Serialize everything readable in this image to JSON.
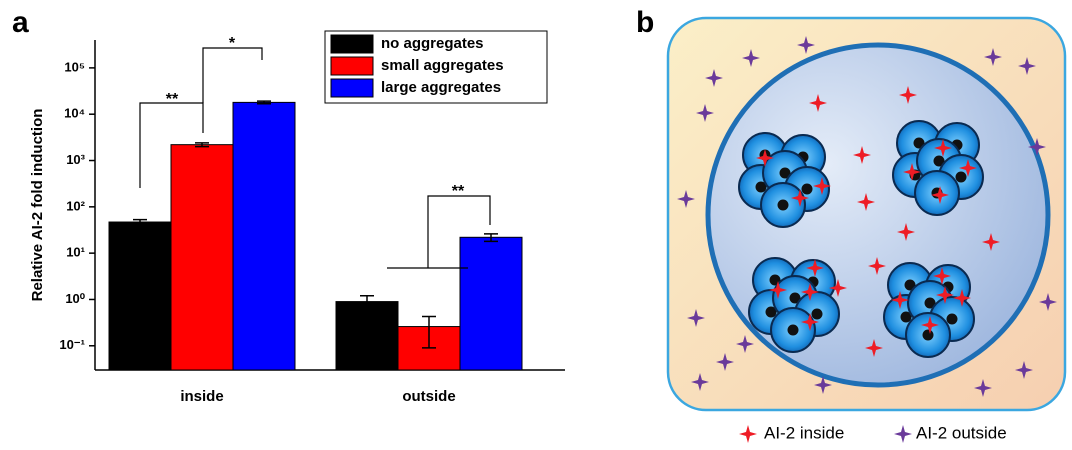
{
  "panel_labels": [
    "a",
    "b"
  ],
  "chart_data": {
    "type": "bar",
    "log_y": true,
    "ylabel": "Relative AI-2 fold induction",
    "categories": [
      "inside",
      "outside"
    ],
    "series": [
      {
        "name": "no aggregates",
        "color": "#000000",
        "values": [
          47,
          0.9
        ],
        "errors": [
          6,
          0.3
        ]
      },
      {
        "name": "small aggregates",
        "color": "#ff0000",
        "values": [
          2200,
          0.26
        ],
        "errors": [
          200,
          0.17
        ]
      },
      {
        "name": "large aggregates",
        "color": "#0000ff",
        "values": [
          18000,
          22
        ],
        "errors": [
          1200,
          4
        ]
      }
    ],
    "ylim": [
      0.03,
      400000
    ],
    "yticks": [
      {
        "value": 0.1,
        "label": "10⁻¹"
      },
      {
        "value": 1,
        "label": "10⁰"
      },
      {
        "value": 10,
        "label": "10¹"
      },
      {
        "value": 100,
        "label": "10²"
      },
      {
        "value": 1000,
        "label": "10³"
      },
      {
        "value": 10000,
        "label": "10⁴"
      },
      {
        "value": 100000,
        "label": "10⁵"
      }
    ],
    "legend": "upper right",
    "annotations": [
      "**",
      "*",
      "**"
    ]
  },
  "diagram": {
    "legend": [
      "AI-2 inside",
      "AI-2 outside"
    ]
  }
}
